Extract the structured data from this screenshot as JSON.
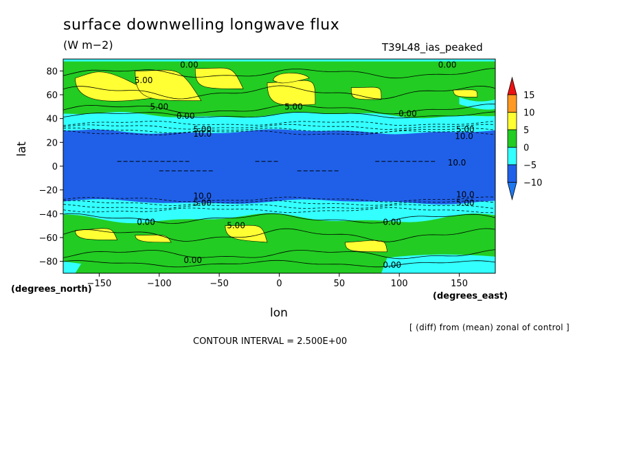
{
  "title": "surface downwelling longwave flux",
  "units": "(W m−2)",
  "experiment": "T39L48_ias_peaked",
  "xlabel": "lon",
  "ylabel": "lat",
  "x_unit_label": "(degrees_east)",
  "y_unit_label": "(degrees_north)",
  "diff_note": "[ (diff) from (mean) zonal of control ]",
  "contour_interval": "CONTOUR INTERVAL = 2.500E+00",
  "colors": {
    "lt_minus10": "#1e78f0",
    "m10_m5": "#2060e8",
    "m5_0": "#33ffff",
    "z0_5": "#22cc22",
    "p5_10": "#ffff33",
    "p10_15": "#ff9922",
    "gt15": "#ee1111"
  },
  "chart_data": {
    "type": "heatmap",
    "title": "surface downwelling longwave flux",
    "xlabel": "lon",
    "ylabel": "lat",
    "xlim": [
      -180,
      180
    ],
    "ylim": [
      -90,
      90
    ],
    "x_ticks": [
      -150,
      -100,
      -50,
      0,
      50,
      100,
      150
    ],
    "y_ticks": [
      80,
      60,
      40,
      20,
      0,
      -20,
      -40,
      -60,
      -80
    ],
    "colorbar": {
      "levels": [
        -10,
        -5,
        0,
        5,
        10,
        15
      ],
      "labels": [
        "15",
        "10",
        "5",
        "0",
        "−5",
        "−10"
      ]
    },
    "contour_labels": [
      {
        "text": "0.00",
        "lon": -75,
        "lat": 85
      },
      {
        "text": "0.00",
        "lon": 140,
        "lat": 85
      },
      {
        "text": "5.00",
        "lon": -113,
        "lat": 72
      },
      {
        "text": "5.00",
        "lon": -100,
        "lat": 50
      },
      {
        "text": "5.00",
        "lon": 12,
        "lat": 50
      },
      {
        "text": "0.00",
        "lon": -78,
        "lat": 42
      },
      {
        "text": "0.00",
        "lon": 107,
        "lat": 44
      },
      {
        "text": "5.00",
        "lon": -64,
        "lat": 31
      },
      {
        "text": "10.0",
        "lon": -64,
        "lat": 27
      },
      {
        "text": "5.00",
        "lon": 155,
        "lat": 31
      },
      {
        "text": "10.0",
        "lon": 154,
        "lat": 25
      },
      {
        "text": "10.0",
        "lon": 148,
        "lat": 3
      },
      {
        "text": "10.0",
        "lon": -64,
        "lat": -25
      },
      {
        "text": "5.00",
        "lon": -64,
        "lat": -31
      },
      {
        "text": "10.0",
        "lon": 155,
        "lat": -24
      },
      {
        "text": "5.00",
        "lon": 155,
        "lat": -31
      },
      {
        "text": "0.00",
        "lon": -111,
        "lat": -47
      },
      {
        "text": "5.00",
        "lon": -36,
        "lat": -50
      },
      {
        "text": "0.00",
        "lon": 94,
        "lat": -47
      },
      {
        "text": "0.00",
        "lon": -72,
        "lat": -79
      },
      {
        "text": "0.00",
        "lon": 94,
        "lat": -83
      }
    ]
  }
}
